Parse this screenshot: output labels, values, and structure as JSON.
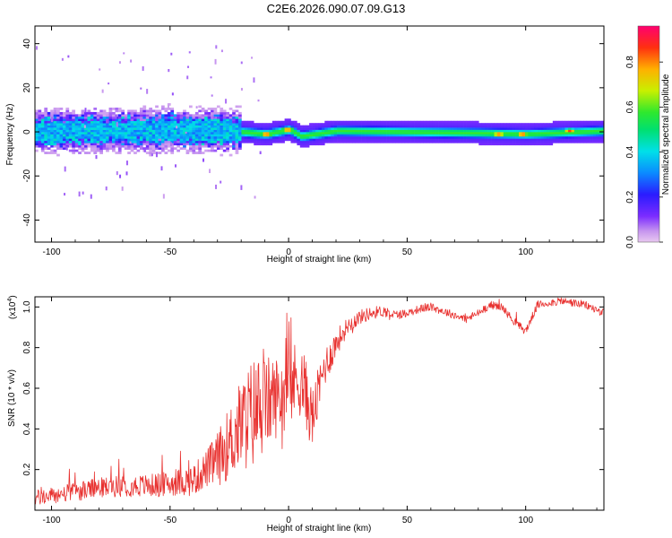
{
  "title": "C2E6.2026.090.07.09.G13",
  "chart_data": [
    {
      "type": "heatmap",
      "xlabel": "Height of straight line (km)",
      "ylabel": "Frequency (Hz)",
      "xlim": [
        -107,
        133
      ],
      "ylim": [
        -50,
        48
      ],
      "xticks": [
        -100,
        -50,
        0,
        50,
        100
      ],
      "yticks": [
        -40,
        -20,
        0,
        20,
        40
      ],
      "colorbar": {
        "label": "Normalized spectral amplitude",
        "range": [
          0,
          0.96
        ],
        "ticks": [
          0.0,
          0.2,
          0.4,
          0.6,
          0.8
        ],
        "tick_labels": [
          "0.0",
          "0.2",
          "0.4",
          "0.6",
          "0.8"
        ]
      },
      "band_center_hz": [
        {
          "x": -105,
          "f": 0
        },
        {
          "x": -80,
          "f": 0
        },
        {
          "x": -50,
          "f": 0.5
        },
        {
          "x": -25,
          "f": 0
        },
        {
          "x": -10,
          "f": -1.5
        },
        {
          "x": 0,
          "f": 0.5
        },
        {
          "x": 5,
          "f": -2.5
        },
        {
          "x": 20,
          "f": 0
        },
        {
          "x": 80,
          "f": -1
        },
        {
          "x": 100,
          "f": -1.5
        },
        {
          "x": 133,
          "f": 0
        }
      ],
      "peaks": [
        {
          "x": -10,
          "f": -1.5,
          "amp": 0.92
        },
        {
          "x": -1,
          "f": 0.5,
          "amp": 0.9
        },
        {
          "x": 88,
          "f": -1.5,
          "amp": 0.9
        },
        {
          "x": 98,
          "f": -1.5,
          "amp": 0.92
        },
        {
          "x": 118,
          "f": 0,
          "amp": 0.85
        }
      ]
    },
    {
      "type": "line",
      "xlabel": "Height of straight line (km)",
      "ylabel": "SNR (10 * v/v)",
      "scale_label": "(x10",
      "scale_exponent": "4",
      "scale_close": ")",
      "xlim": [
        -107,
        133
      ],
      "ylim": [
        0,
        1.05
      ],
      "xticks": [
        -100,
        -50,
        0,
        50,
        100
      ],
      "yticks": [
        0.2,
        0.4,
        0.6,
        0.8,
        1.0
      ],
      "ytick_labels": [
        "0.2",
        "0.4",
        "0.6",
        "0.8",
        "1.0"
      ],
      "color": "#e8312f",
      "series_trend": {
        "x": [
          -107,
          -100,
          -90,
          -80,
          -70,
          -60,
          -50,
          -40,
          -35,
          -30,
          -25,
          -20,
          -15,
          -10,
          -5,
          0,
          5,
          10,
          15,
          20,
          25,
          30,
          35,
          40,
          45,
          50,
          55,
          60,
          65,
          70,
          75,
          80,
          85,
          90,
          95,
          100,
          105,
          110,
          115,
          120,
          125,
          133
        ],
        "y": [
          0.06,
          0.07,
          0.09,
          0.11,
          0.12,
          0.12,
          0.13,
          0.15,
          0.2,
          0.25,
          0.33,
          0.42,
          0.48,
          0.52,
          0.56,
          0.6,
          0.66,
          0.45,
          0.7,
          0.82,
          0.91,
          0.95,
          0.97,
          0.98,
          0.96,
          0.97,
          0.99,
          1.0,
          0.98,
          0.96,
          0.94,
          0.97,
          1.01,
          1.0,
          0.93,
          0.88,
          1.01,
          1.02,
          1.03,
          1.02,
          1.01,
          0.97
        ]
      },
      "noise_amplitude_trend": {
        "x": [
          -107,
          -50,
          -35,
          -25,
          -15,
          -5,
          5,
          15,
          25,
          50,
          133
        ],
        "y": [
          0.04,
          0.06,
          0.09,
          0.18,
          0.28,
          0.2,
          0.2,
          0.1,
          0.04,
          0.02,
          0.02
        ]
      }
    }
  ]
}
